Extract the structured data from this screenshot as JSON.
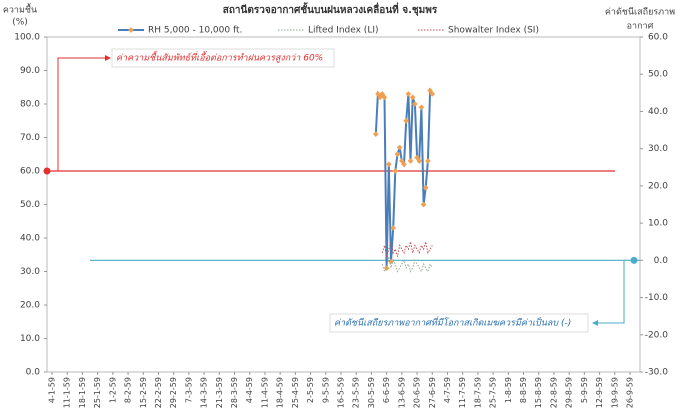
{
  "chart_data": {
    "type": "line",
    "title": "สถานีตรวจอากาศชั้นบนฝนหลวงเคลื่อนที่ จ.ชุมพร",
    "y_label": [
      "ความชื้น",
      "(%)"
    ],
    "y2_label": [
      "ค่าดัชนีเสถียรภาพ",
      "อากาศ"
    ],
    "categories": [
      "4-1-59",
      "11-1-59",
      "18-1-59",
      "25-1-59",
      "1-2-59",
      "8-2-59",
      "15-2-59",
      "22-2-59",
      "29-2-59",
      "7-3-59",
      "14-3-59",
      "21-3-59",
      "28-3-59",
      "4-4-59",
      "11-4-59",
      "18-4-59",
      "25-4-59",
      "2-5-59",
      "9-5-59",
      "16-5-59",
      "23-5-59",
      "30-5-59",
      "6-6-59",
      "13-6-59",
      "20-6-59",
      "27-6-59",
      "4-7-59",
      "11-7-59",
      "18-7-59",
      "25-7-59",
      "1-8-59",
      "8-8-59",
      "15-8-59",
      "22-8-59",
      "29-8-59",
      "5-9-59",
      "12-9-59",
      "19-9-59",
      "26-9-59"
    ],
    "ylim": [
      0,
      100
    ],
    "yticks": [
      {
        "value": 0,
        "label": "0.0"
      },
      {
        "value": 10,
        "label": "10.0"
      },
      {
        "value": 20,
        "label": "20.0"
      },
      {
        "value": 30,
        "label": "30.0"
      },
      {
        "value": 40,
        "label": "40.0"
      },
      {
        "value": 50,
        "label": "50.0"
      },
      {
        "value": 60,
        "label": "60.0"
      },
      {
        "value": 70,
        "label": "70.0"
      },
      {
        "value": 80,
        "label": "80.0"
      },
      {
        "value": 90,
        "label": "90.0"
      },
      {
        "value": 100,
        "label": "100.0"
      }
    ],
    "y2lim": [
      -30,
      60
    ],
    "y2ticks": [
      {
        "value": -30,
        "label": "-30.0"
      },
      {
        "value": -20,
        "label": "-20.0"
      },
      {
        "value": -10,
        "label": "-10.0"
      },
      {
        "value": 0,
        "label": "0.0"
      },
      {
        "value": 10,
        "label": "10.0"
      },
      {
        "value": 20,
        "label": "20.0"
      },
      {
        "value": 30,
        "label": "30.0"
      },
      {
        "value": 40,
        "label": "40.0"
      },
      {
        "value": 50,
        "label": "50.0"
      },
      {
        "value": 60,
        "label": "60.0"
      }
    ],
    "series": [
      {
        "name": "RH 5,000 - 10,000 ft.",
        "color": "#4a7ebb",
        "marker_color": "#f0a050",
        "axis": "y",
        "x": [
          "1-6-59",
          "2-6-59",
          "3-6-59",
          "4-6-59",
          "5-6-59",
          "6-6-59",
          "7-6-59",
          "8-6-59",
          "9-6-59",
          "10-6-59",
          "11-6-59",
          "12-6-59",
          "13-6-59",
          "14-6-59",
          "15-6-59",
          "16-6-59",
          "17-6-59",
          "18-6-59",
          "19-6-59",
          "20-6-59",
          "21-6-59",
          "22-6-59",
          "23-6-59",
          "24-6-59",
          "25-6-59",
          "26-6-59",
          "27-6-59"
        ],
        "values": [
          71,
          83,
          82,
          83,
          82,
          31,
          62,
          33,
          43,
          60,
          65,
          67,
          63,
          62,
          75,
          83,
          63,
          82,
          80,
          64,
          63,
          79,
          50,
          55,
          63,
          84,
          83
        ]
      },
      {
        "name": "Lifted Index (LI)",
        "color": "#8faa8f",
        "axis": "y2",
        "x": [
          "4-6-59",
          "5-6-59",
          "6-6-59",
          "7-6-59",
          "8-6-59",
          "9-6-59",
          "10-6-59",
          "11-6-59",
          "12-6-59",
          "13-6-59",
          "14-6-59",
          "15-6-59",
          "16-6-59",
          "17-6-59",
          "18-6-59",
          "19-6-59",
          "20-6-59",
          "21-6-59",
          "22-6-59",
          "23-6-59",
          "24-6-59",
          "25-6-59",
          "26-6-59",
          "27-6-59"
        ],
        "values": [
          -1,
          -3,
          -2,
          1,
          -2,
          0,
          -1,
          -3,
          -2,
          -1,
          0,
          -2,
          -1,
          -3,
          -2,
          0,
          -1,
          -2,
          -3,
          -1,
          -2,
          -3,
          -1,
          -2
        ]
      },
      {
        "name": "Showalter Index (SI)",
        "color": "#c0504d",
        "axis": "y2",
        "x": [
          "4-6-59",
          "5-6-59",
          "6-6-59",
          "7-6-59",
          "8-6-59",
          "9-6-59",
          "10-6-59",
          "11-6-59",
          "12-6-59",
          "13-6-59",
          "14-6-59",
          "15-6-59",
          "16-6-59",
          "17-6-59",
          "18-6-59",
          "19-6-59",
          "20-6-59",
          "21-6-59",
          "22-6-59",
          "23-6-59",
          "24-6-59",
          "25-6-59",
          "26-6-59",
          "27-6-59"
        ],
        "values": [
          2,
          4,
          1,
          3,
          5,
          2,
          3,
          1,
          4,
          3,
          2,
          4,
          3,
          5,
          2,
          4,
          3,
          2,
          4,
          3,
          5,
          2,
          3,
          4
        ]
      }
    ],
    "reference_lines": [
      {
        "value": 60,
        "axis": "y",
        "color": "#e03030",
        "text": "ค่าความชื้นสัมพัทธ์ที่เอื้อต่อการทำฝนควรสูงกว่า 60%"
      },
      {
        "value": 0,
        "axis": "y2",
        "color": "#4bacc6",
        "text": "ค่าดัชนีเสถียรภาพอากาศที่มีโอกาสเกิดเมฆควรมีค่าเป็นลบ (-)"
      }
    ]
  }
}
